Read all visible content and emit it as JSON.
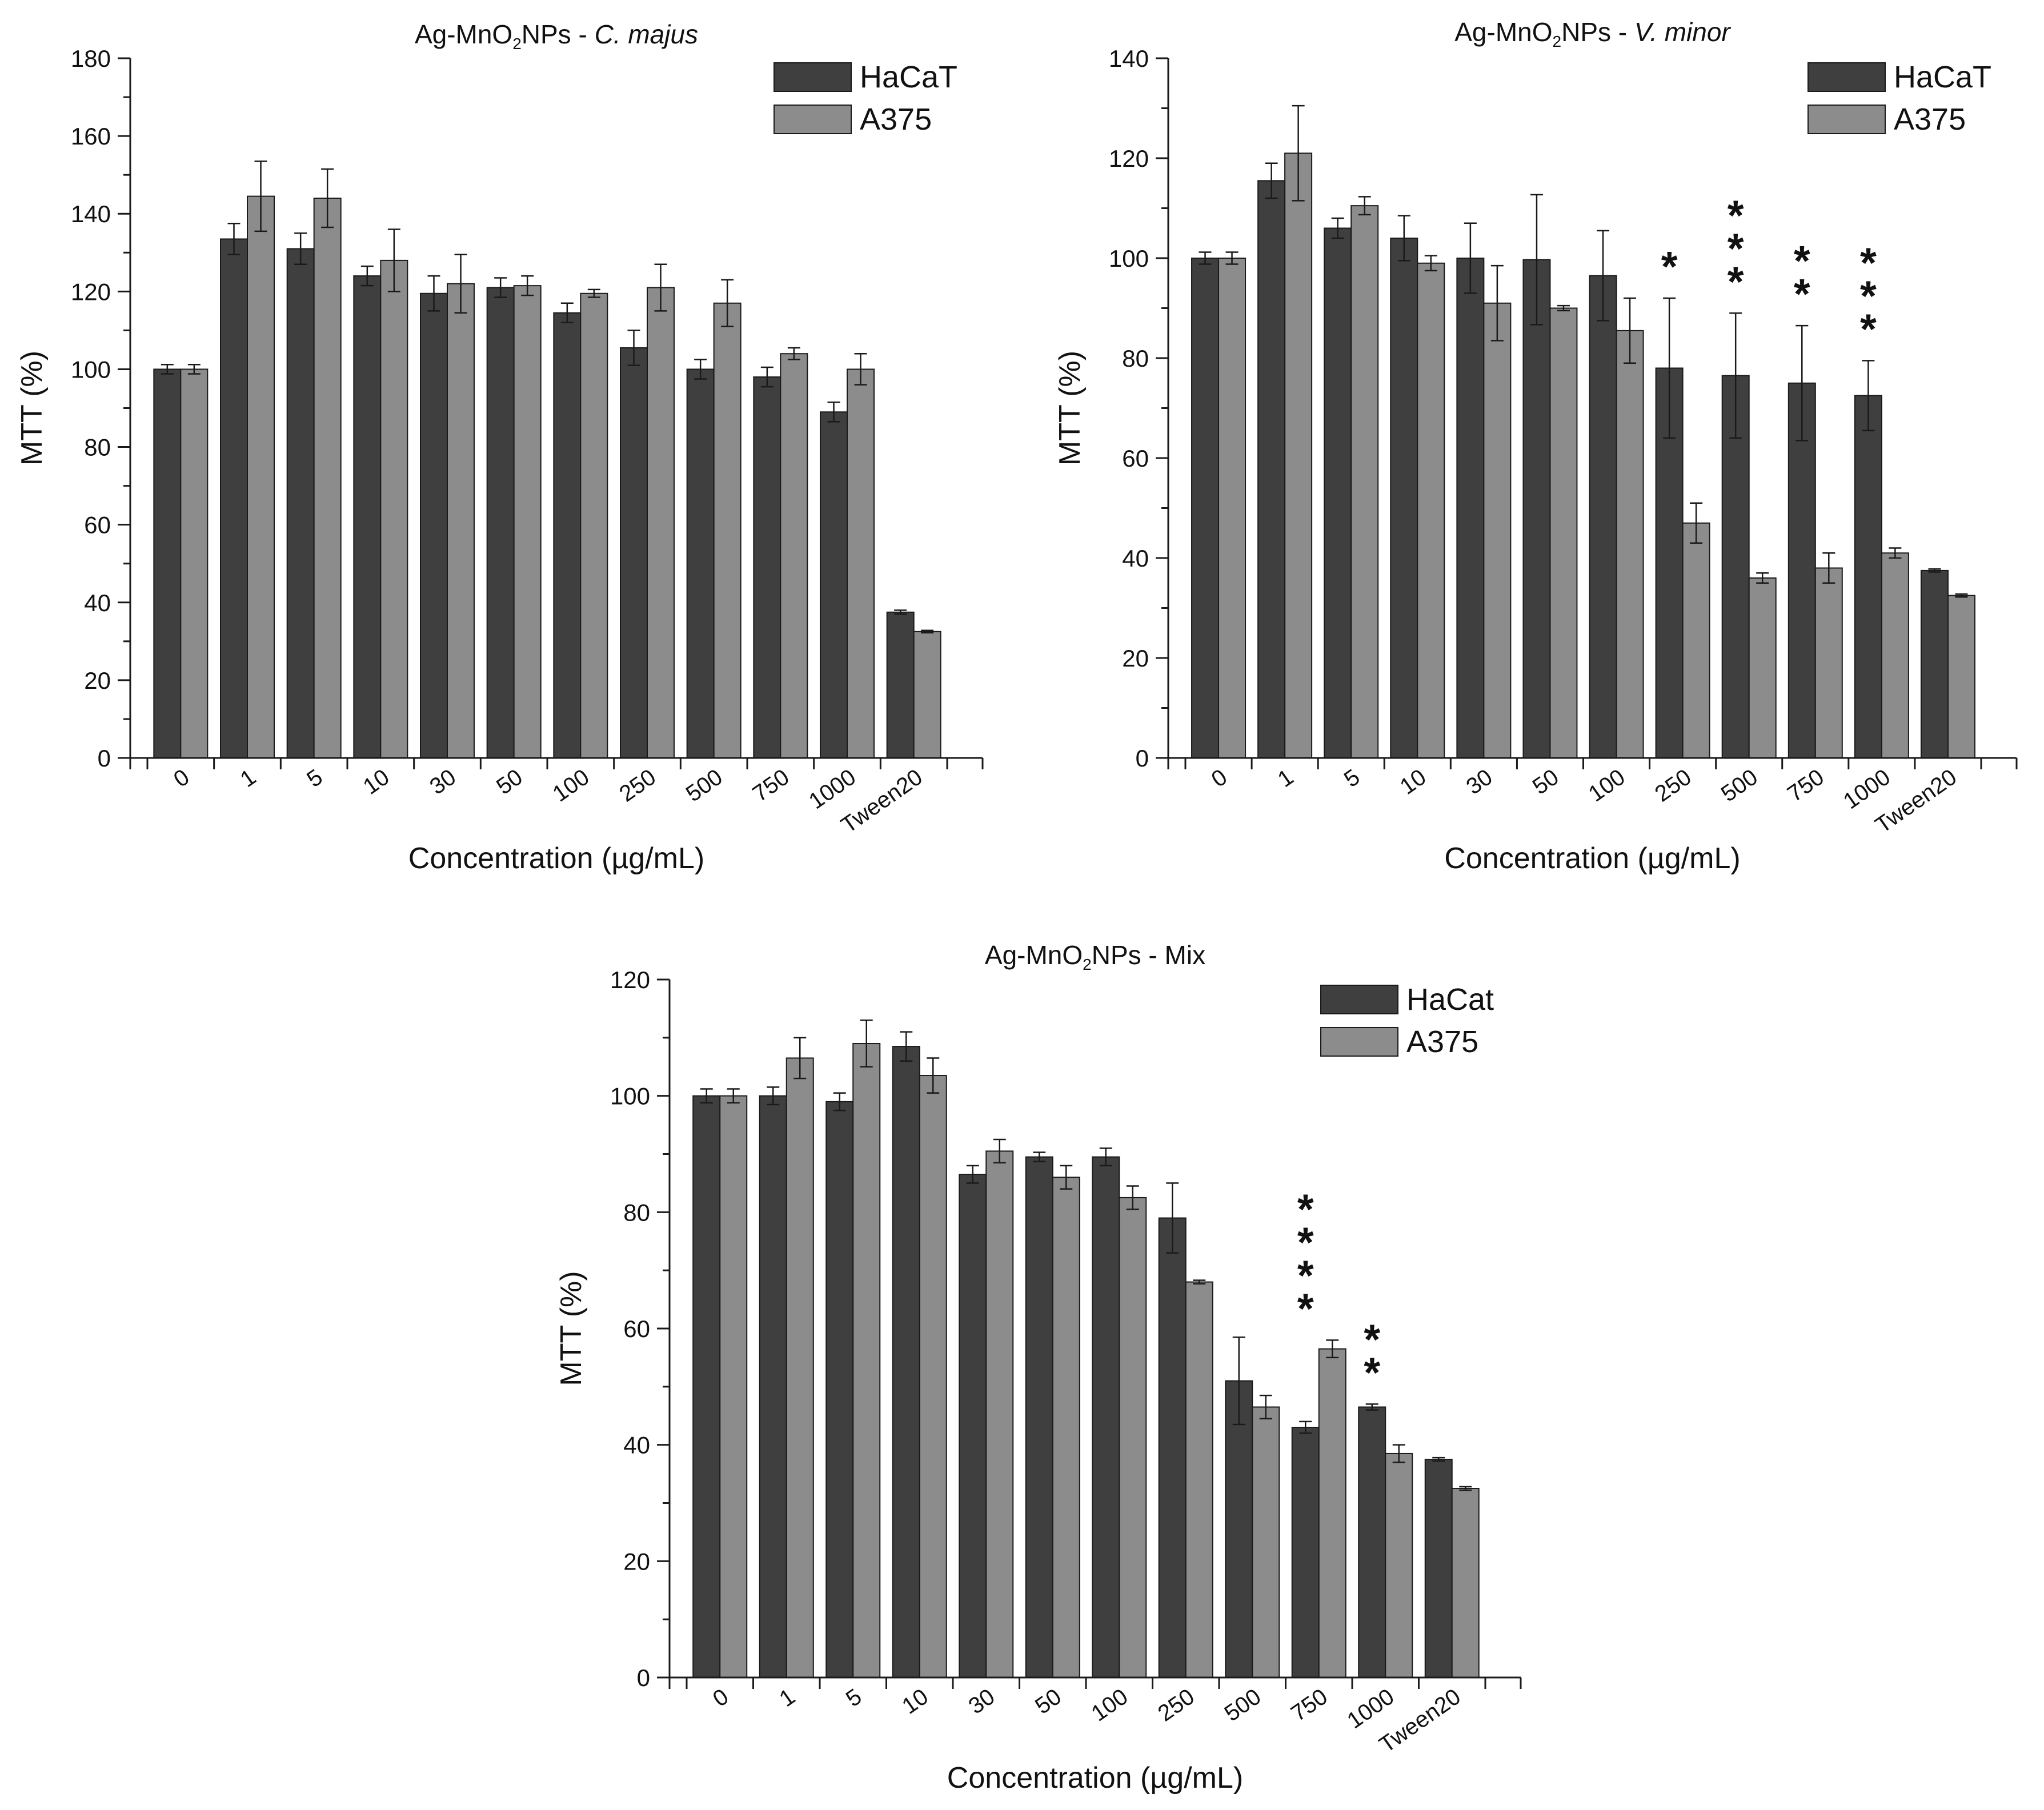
{
  "colors": {
    "hacat": "#3f3f3f",
    "a375": "#8c8c8c",
    "axis": "#1a1a1a",
    "background": "#ffffff"
  },
  "chart_data": [
    {
      "type": "bar",
      "title_prefix": "Ag-MnO",
      "title_subscript": "2",
      "title_mid": "NPs - ",
      "title_italic": "C. majus",
      "xlabel": "Concentration (µg/mL)",
      "ylabel": "MTT (%)",
      "ylim": [
        0,
        180
      ],
      "yticks": [
        0,
        20,
        40,
        60,
        80,
        100,
        120,
        140,
        160,
        180
      ],
      "categories": [
        "0",
        "1",
        "5",
        "10",
        "30",
        "50",
        "100",
        "250",
        "500",
        "750",
        "1000",
        "Tween20"
      ],
      "legend_position": "top-right",
      "series": [
        {
          "name": "HaCaT",
          "values": [
            100,
            133.5,
            131,
            124,
            119.5,
            121,
            114.5,
            105.5,
            100,
            98,
            89,
            37.5
          ],
          "errors": [
            1.2,
            4,
            4,
            2.5,
            4.5,
            2.5,
            2.5,
            4.5,
            2.5,
            2.5,
            2.5,
            0.5
          ]
        },
        {
          "name": "A375",
          "values": [
            100,
            144.5,
            144,
            128,
            122,
            121.5,
            119.5,
            121,
            117,
            104,
            100,
            32.5
          ],
          "errors": [
            1.2,
            9,
            7.5,
            8,
            7.5,
            2.5,
            1,
            6,
            6,
            1.5,
            4,
            0.3
          ]
        }
      ],
      "annotations": []
    },
    {
      "type": "bar",
      "title_prefix": "Ag-MnO",
      "title_subscript": "2",
      "title_mid": "NPs - ",
      "title_italic": "V. minor",
      "xlabel": "Concentration (µg/mL)",
      "ylabel": "MTT (%)",
      "ylim": [
        0,
        140
      ],
      "yticks": [
        0,
        20,
        40,
        60,
        80,
        100,
        120,
        140
      ],
      "categories": [
        "0",
        "1",
        "5",
        "10",
        "30",
        "50",
        "100",
        "250",
        "500",
        "750",
        "1000",
        "Tween20"
      ],
      "legend_position": "top-right",
      "series": [
        {
          "name": "HaCaT",
          "values": [
            100,
            115.5,
            106,
            104,
            100,
            99.7,
            96.5,
            78,
            76.5,
            75,
            72.5,
            37.5
          ],
          "errors": [
            1.2,
            3.5,
            2,
            4.5,
            7,
            13,
            9,
            14,
            12.5,
            11.5,
            7,
            0.3
          ]
        },
        {
          "name": "A375",
          "values": [
            100,
            121,
            110.5,
            99,
            91,
            90,
            85.5,
            47,
            36,
            38,
            41,
            32.5
          ],
          "errors": [
            1.2,
            9.5,
            1.8,
            1.5,
            7.5,
            0.5,
            6.5,
            4,
            1,
            3,
            1,
            0.3
          ]
        }
      ],
      "annotations": [
        {
          "category": "250",
          "text": "*"
        },
        {
          "category": "500",
          "text": "***"
        },
        {
          "category": "750",
          "text": "**"
        },
        {
          "category": "1000",
          "text": "***"
        }
      ]
    },
    {
      "type": "bar",
      "title_prefix": "Ag-MnO",
      "title_subscript": "2",
      "title_mid": "NPs - Mix",
      "title_italic": "",
      "xlabel": "Concentration (µg/mL)",
      "ylabel": "MTT (%)",
      "ylim": [
        0,
        120
      ],
      "yticks": [
        0,
        20,
        40,
        60,
        80,
        100,
        120
      ],
      "categories": [
        "0",
        "1",
        "5",
        "10",
        "30",
        "50",
        "100",
        "250",
        "500",
        "750",
        "1000",
        "Tween20"
      ],
      "legend_position": "top-right",
      "series": [
        {
          "name": "HaCat",
          "values": [
            100,
            100,
            99,
            108.5,
            86.5,
            89.5,
            89.5,
            79,
            51,
            43,
            46.5,
            37.5
          ],
          "errors": [
            1.2,
            1.5,
            1.5,
            2.5,
            1.5,
            0.8,
            1.5,
            6,
            7.5,
            1,
            0.5,
            0.3
          ]
        },
        {
          "name": "A375",
          "values": [
            100,
            106.5,
            109,
            103.5,
            90.5,
            86,
            82.5,
            68,
            46.5,
            56.5,
            38.5,
            32.5
          ],
          "errors": [
            1.2,
            3.5,
            4,
            3,
            2,
            2,
            2,
            0.3,
            2,
            1.5,
            1.5,
            0.3
          ]
        }
      ],
      "annotations": [
        {
          "category": "750",
          "text": "****"
        },
        {
          "category": "1000",
          "text": "**"
        }
      ]
    }
  ]
}
